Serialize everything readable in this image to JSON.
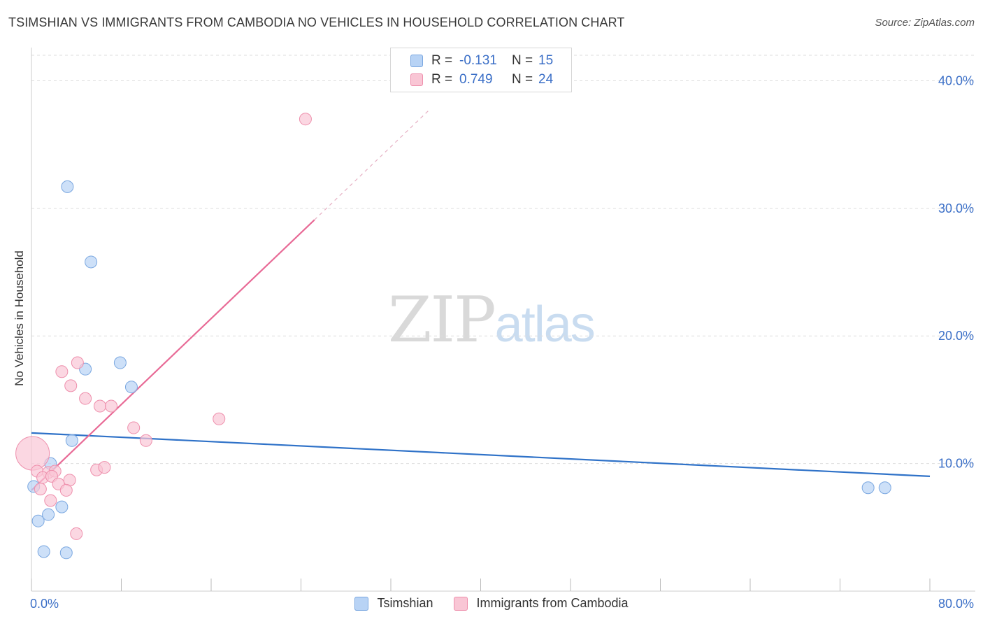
{
  "title": "TSIMSHIAN VS IMMIGRANTS FROM CAMBODIA NO VEHICLES IN HOUSEHOLD CORRELATION CHART",
  "source": "Source: ZipAtlas.com",
  "watermark": {
    "zip": "ZIP",
    "atlas": "atlas"
  },
  "legend_top": [
    {
      "r_label": "R = ",
      "r_value": "-0.131",
      "n_label": "N = ",
      "n_value": "15"
    },
    {
      "r_label": "R = ",
      "r_value": "0.749",
      "n_label": "N = ",
      "n_value": "24"
    }
  ],
  "colors": {
    "blue_fill": "#b8d3f5",
    "blue_stroke": "#7aa7e0",
    "blue_line": "#2f72c8",
    "pink_fill": "#f9c6d5",
    "pink_stroke": "#ee8fac",
    "pink_line": "#e86a96",
    "tick_label": "#3b6fc7",
    "grid": "#dddddd"
  },
  "chart_data": {
    "type": "scatter",
    "xlabel": "",
    "ylabel": "No Vehicles in Household",
    "xlim": [
      0,
      80
    ],
    "ylim": [
      0,
      42
    ],
    "x_tick_labels": [
      {
        "value": 0,
        "label": "0.0%"
      },
      {
        "value": 80,
        "label": "80.0%"
      }
    ],
    "y_tick_labels": [
      {
        "value": 10,
        "label": "10.0%"
      },
      {
        "value": 20,
        "label": "20.0%"
      },
      {
        "value": 30,
        "label": "30.0%"
      },
      {
        "value": 40,
        "label": "40.0%"
      }
    ],
    "y_gridlines": [
      10,
      20,
      30,
      40
    ],
    "x_minor_ticks": [
      0,
      8,
      16,
      24,
      32,
      40,
      48,
      56,
      64,
      72,
      80
    ],
    "series": [
      {
        "name": "Tsimshian",
        "color": "blue",
        "points": [
          {
            "x": 3.2,
            "y": 31.7
          },
          {
            "x": 5.3,
            "y": 25.8
          },
          {
            "x": 7.9,
            "y": 17.9
          },
          {
            "x": 4.8,
            "y": 17.4
          },
          {
            "x": 8.9,
            "y": 16.0
          },
          {
            "x": 3.6,
            "y": 11.8
          },
          {
            "x": 1.7,
            "y": 10.0
          },
          {
            "x": 0.2,
            "y": 8.2
          },
          {
            "x": 2.7,
            "y": 6.6
          },
          {
            "x": 1.5,
            "y": 6.0
          },
          {
            "x": 0.6,
            "y": 5.5
          },
          {
            "x": 1.1,
            "y": 3.1
          },
          {
            "x": 3.1,
            "y": 3.0
          },
          {
            "x": 74.5,
            "y": 8.1
          },
          {
            "x": 76.0,
            "y": 8.1
          }
        ],
        "trend": {
          "x": [
            0,
            80
          ],
          "y": [
            12.4,
            9.0
          ],
          "style": "solid"
        }
      },
      {
        "name": "Immigrants from Cambodia",
        "color": "pink",
        "points": [
          {
            "x": 24.4,
            "y": 37.0
          },
          {
            "x": 4.1,
            "y": 17.9
          },
          {
            "x": 2.7,
            "y": 17.2
          },
          {
            "x": 3.5,
            "y": 16.1
          },
          {
            "x": 4.8,
            "y": 15.1
          },
          {
            "x": 6.1,
            "y": 14.5
          },
          {
            "x": 7.1,
            "y": 14.5
          },
          {
            "x": 16.7,
            "y": 13.5
          },
          {
            "x": 9.1,
            "y": 12.8
          },
          {
            "x": 10.2,
            "y": 11.8
          },
          {
            "x": 0.1,
            "y": 10.8,
            "size": "large"
          },
          {
            "x": 0.5,
            "y": 9.4
          },
          {
            "x": 1.5,
            "y": 9.3
          },
          {
            "x": 2.1,
            "y": 9.4
          },
          {
            "x": 5.8,
            "y": 9.5
          },
          {
            "x": 6.5,
            "y": 9.7
          },
          {
            "x": 1.0,
            "y": 8.9
          },
          {
            "x": 1.8,
            "y": 9.0
          },
          {
            "x": 2.4,
            "y": 8.4
          },
          {
            "x": 3.4,
            "y": 8.7
          },
          {
            "x": 0.8,
            "y": 8.0
          },
          {
            "x": 3.1,
            "y": 7.9
          },
          {
            "x": 1.7,
            "y": 7.1
          },
          {
            "x": 4.0,
            "y": 4.5
          }
        ],
        "trend": {
          "x": [
            0,
            25.2
          ],
          "y": [
            7.9,
            29.1
          ],
          "style": "solid",
          "extension": {
            "x": [
              25.2,
              35.4
            ],
            "y": [
              29.1,
              37.7
            ],
            "style": "dashed"
          }
        }
      }
    ],
    "legend": {
      "placement": "bottom-center",
      "entries": [
        "Tsimshian",
        "Immigrants from Cambodia"
      ]
    }
  }
}
